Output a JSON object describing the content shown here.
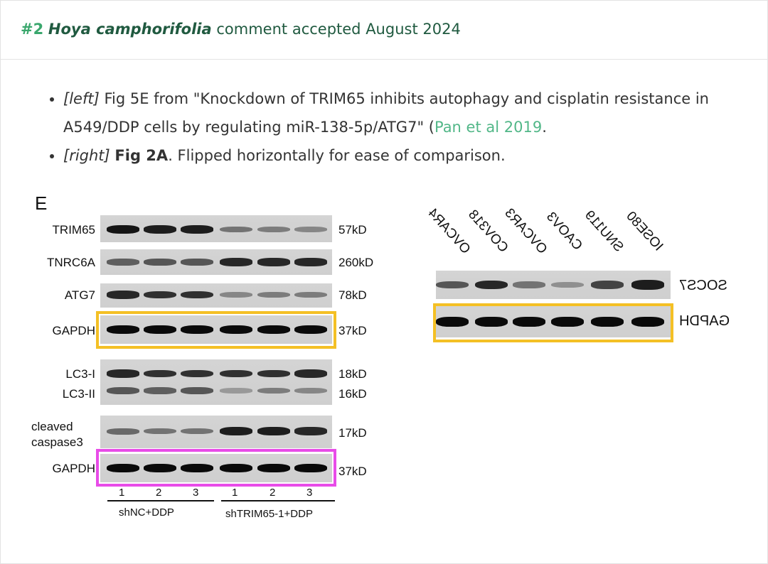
{
  "header": {
    "number": "#2",
    "species": "Hoya camphorifolia",
    "status": "comment accepted August 2024"
  },
  "notes": [
    {
      "tag": "[left]",
      "text_before": " Fig 5E from \"Knockdown of TRIM65 inhibits autophagy and cisplatin resistance in A549/DDP cells by regulating miR-138-5p/ATG7\" (",
      "link": "Pan et al 2019",
      "text_after": "."
    },
    {
      "tag": "[right]",
      "bold": "Fig 2A",
      "text_after": ". Flipped horizontally for ease of comparison."
    }
  ],
  "left_figure": {
    "panel_letter": "E",
    "rows": [
      {
        "label": "TRIM65",
        "kd": "57kD",
        "intensity": [
          0.95,
          0.9,
          0.9,
          0.45,
          0.4,
          0.35
        ]
      },
      {
        "label": "TNRC6A",
        "kd": "260kD",
        "intensity": [
          0.55,
          0.6,
          0.6,
          0.85,
          0.85,
          0.85
        ]
      },
      {
        "label": "ATG7",
        "kd": "78kD",
        "intensity": [
          0.85,
          0.8,
          0.8,
          0.35,
          0.4,
          0.4
        ]
      },
      {
        "label": "GAPDH",
        "kd": "37kD",
        "intensity": [
          1,
          1,
          1,
          1,
          1,
          1
        ]
      },
      {
        "label": "LC3-I",
        "kd": "18kD",
        "intensity": [
          0.85,
          0.8,
          0.8,
          0.8,
          0.8,
          0.85
        ]
      },
      {
        "label": "LC3-II",
        "kd": "16kD",
        "intensity": [
          0.6,
          0.55,
          0.6,
          0.25,
          0.4,
          0.35
        ]
      },
      {
        "label": "cleaved\ncaspase3",
        "kd": "17kD",
        "intensity": [
          0.5,
          0.45,
          0.45,
          0.9,
          0.9,
          0.85
        ]
      },
      {
        "label": "GAPDH",
        "kd": "37kD",
        "intensity": [
          1,
          1,
          1,
          1,
          1,
          1
        ]
      }
    ],
    "lanes": [
      "1",
      "2",
      "3",
      "1",
      "2",
      "3"
    ],
    "groups": [
      "shNC+DDP",
      "shTRIM65-1+DDP"
    ],
    "highlight_colors": {
      "first_gapdh": "#f4c025",
      "second_gapdh": "#e84ce8"
    }
  },
  "right_figure": {
    "cell_lines": [
      "OVCAR4",
      "COV318",
      "OVCAR3",
      "CAOV3",
      "SNU119",
      "IOSE80"
    ],
    "rows": [
      {
        "label": "SOCS7",
        "intensity": [
          0.6,
          0.85,
          0.45,
          0.3,
          0.7,
          0.9
        ]
      },
      {
        "label": "GAPDH",
        "intensity": [
          1,
          1,
          1,
          1,
          1,
          1
        ]
      }
    ],
    "highlight_color": "#f4c025"
  }
}
